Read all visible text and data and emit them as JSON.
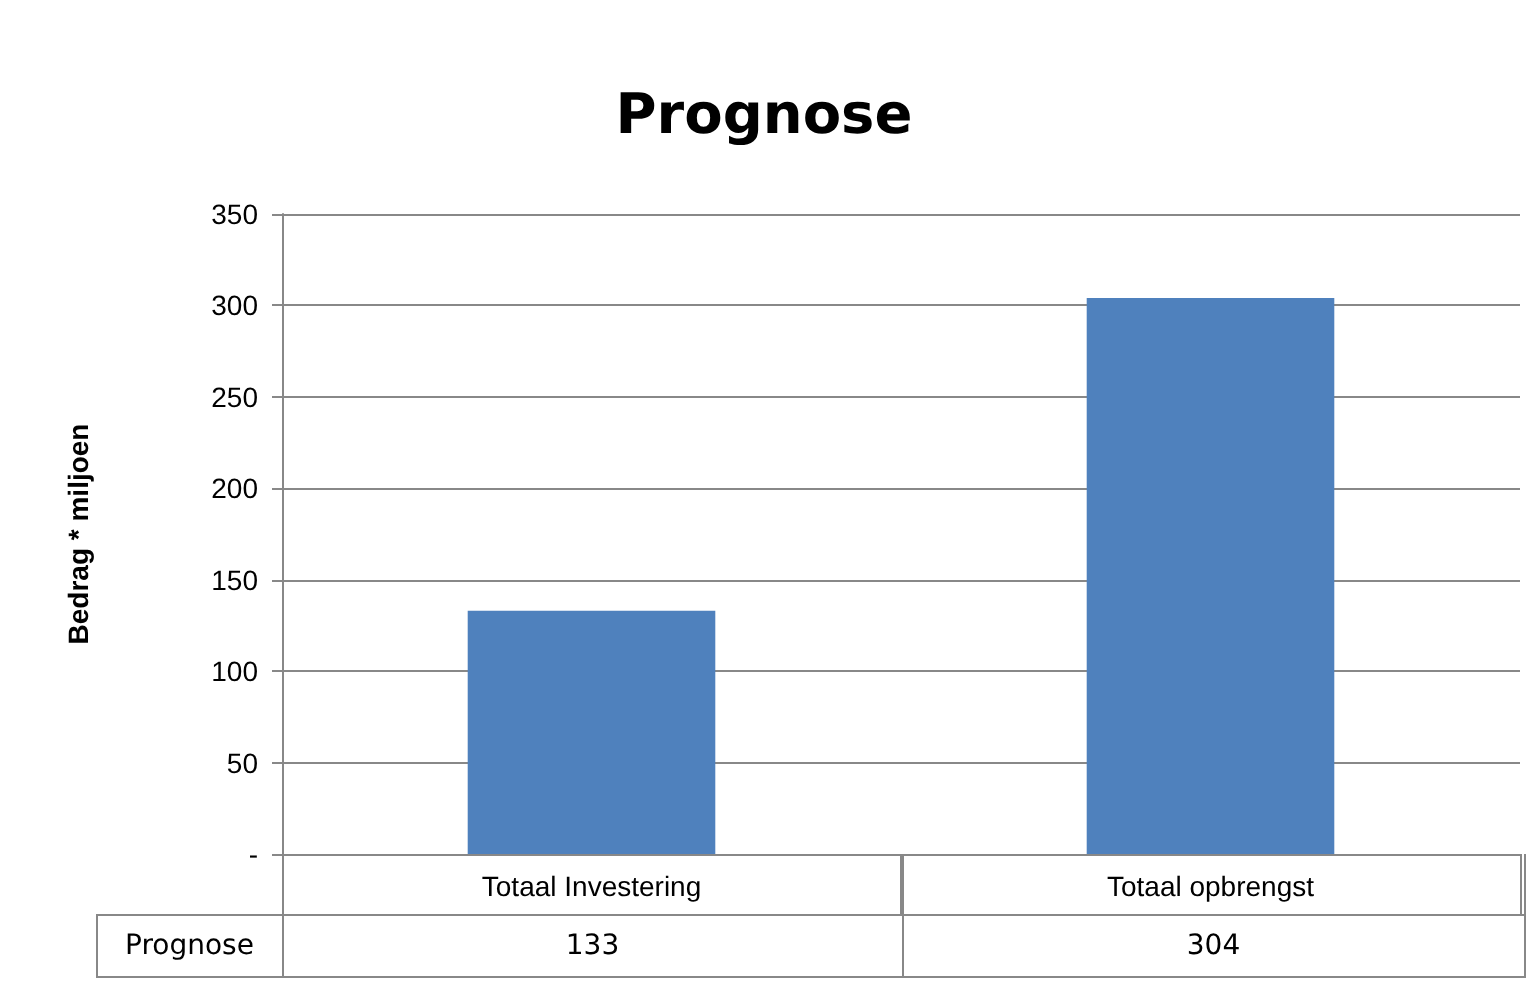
{
  "chart_data": {
    "type": "bar",
    "title": "Prognose",
    "ylabel": "Bedrag * miljoen",
    "categories": [
      "Totaal Investering",
      "Totaal opbrengst"
    ],
    "series": [
      {
        "name": "Prognose",
        "color": "#4f81bd",
        "values": [
          133,
          304
        ]
      }
    ],
    "ylim": [
      0,
      350
    ],
    "yticks": [
      {
        "value": 0,
        "label": "-"
      },
      50,
      100,
      150,
      200,
      250,
      300,
      350
    ],
    "grid": "y",
    "legend": false,
    "data_labels": true
  }
}
